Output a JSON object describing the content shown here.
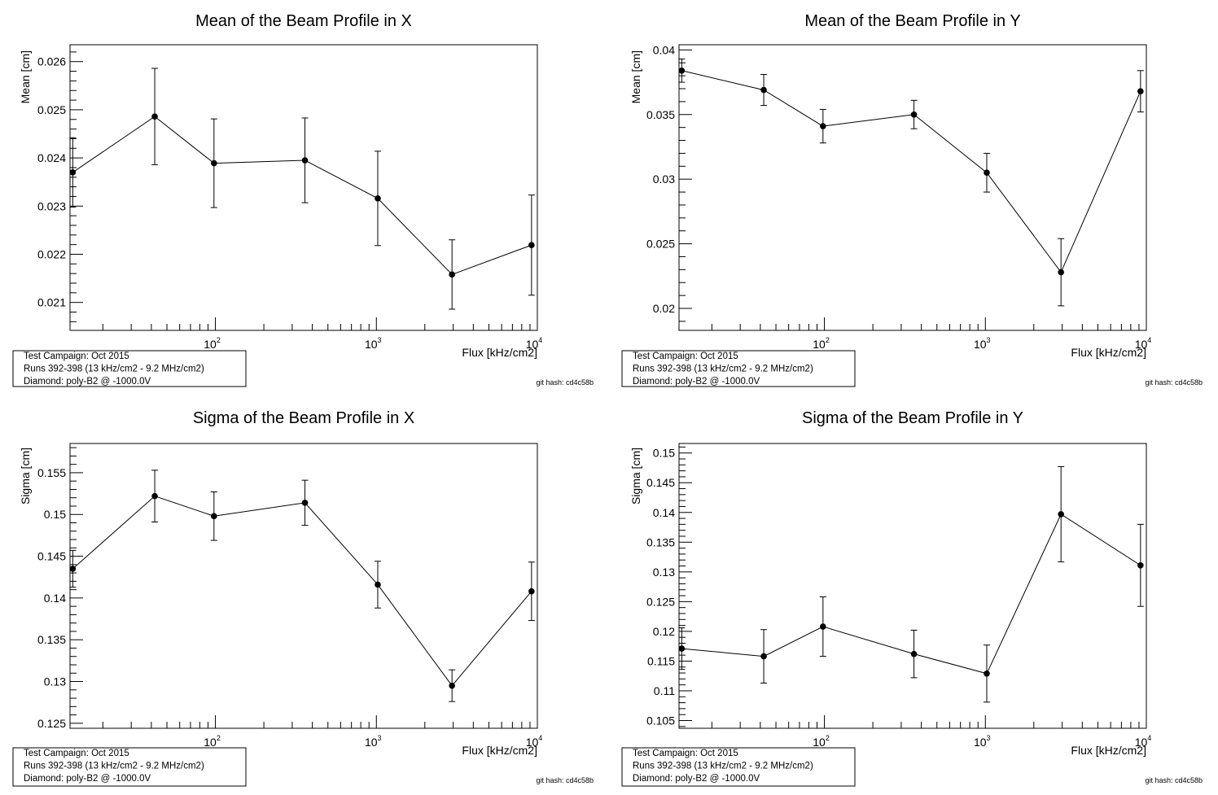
{
  "x_values": [
    13,
    42,
    98,
    360,
    1020,
    2950,
    9200
  ],
  "common": {
    "xlabel": "Flux [kHz/cm2]",
    "info_lines": [
      "Test Campaign: Oct 2015",
      "Runs 392-398 (13 kHz/cm2 - 9.2 MHz/cm2)",
      "Diamond: poly-B2 @ -1000.0V"
    ],
    "git_hash": "git hash: cd4c58b"
  },
  "chart_data": [
    {
      "type": "scatter",
      "title": "Mean of the Beam Profile in X",
      "xlabel": "Flux [kHz/cm2]",
      "ylabel": "Mean [cm]",
      "xscale": "log",
      "xlim": [
        12.5,
        10000
      ],
      "ylim": [
        0.02042,
        0.02635
      ],
      "yticks": [
        0.021,
        0.022,
        0.023,
        0.024,
        0.025,
        0.026
      ],
      "ytick_labels": [
        "0.021",
        "0.022",
        "0.023",
        "0.024",
        "0.025",
        "0.026"
      ],
      "xtick_labels": [
        {
          "base": "10",
          "exp": "2",
          "value": 100
        },
        {
          "base": "10",
          "exp": "3",
          "value": 1000
        },
        {
          "base": "10",
          "exp": "4",
          "value": 10000
        }
      ],
      "x": [
        13,
        42,
        98,
        360,
        1020,
        2950,
        9200
      ],
      "y": [
        0.0237,
        0.02486,
        0.02389,
        0.02395,
        0.02316,
        0.02158,
        0.02219
      ],
      "yerr": [
        0.00072,
        0.001,
        0.00092,
        0.00088,
        0.00098,
        0.00072,
        0.00104
      ],
      "grid": false,
      "legend": "none"
    },
    {
      "type": "scatter",
      "title": "Mean of the Beam Profile in Y",
      "xlabel": "Flux [kHz/cm2]",
      "ylabel": "Mean [cm]",
      "xscale": "log",
      "xlim": [
        12.5,
        10000
      ],
      "ylim": [
        0.0183,
        0.0404
      ],
      "yticks": [
        0.02,
        0.025,
        0.03,
        0.035,
        0.04
      ],
      "ytick_labels": [
        "0.02",
        "0.025",
        "0.03",
        "0.035",
        "0.04"
      ],
      "xtick_labels": [
        {
          "base": "10",
          "exp": "2",
          "value": 100
        },
        {
          "base": "10",
          "exp": "3",
          "value": 1000
        },
        {
          "base": "10",
          "exp": "4",
          "value": 10000
        }
      ],
      "x": [
        13,
        42,
        98,
        360,
        1020,
        2950,
        9200
      ],
      "y": [
        0.0384,
        0.0369,
        0.0341,
        0.035,
        0.0305,
        0.0228,
        0.0368
      ],
      "yerr": [
        0.0009,
        0.0012,
        0.0013,
        0.0011,
        0.0015,
        0.0026,
        0.0016
      ],
      "grid": false,
      "legend": "none"
    },
    {
      "type": "scatter",
      "title": "Sigma of the Beam Profile in X",
      "xlabel": "Flux [kHz/cm2]",
      "ylabel": "Sigma [cm]",
      "xscale": "log",
      "xlim": [
        12.5,
        10000
      ],
      "ylim": [
        0.1244,
        0.1585
      ],
      "yticks": [
        0.125,
        0.13,
        0.135,
        0.14,
        0.145,
        0.15,
        0.155
      ],
      "ytick_labels": [
        "0.125",
        "0.13",
        "0.135",
        "0.14",
        "0.145",
        "0.15",
        "0.155"
      ],
      "xtick_labels": [
        {
          "base": "10",
          "exp": "2",
          "value": 100
        },
        {
          "base": "10",
          "exp": "3",
          "value": 1000
        },
        {
          "base": "10",
          "exp": "4",
          "value": 10000
        }
      ],
      "x": [
        13,
        42,
        98,
        360,
        1020,
        2950,
        9200
      ],
      "y": [
        0.1435,
        0.1522,
        0.1498,
        0.1514,
        0.1416,
        0.1295,
        0.1408
      ],
      "yerr": [
        0.0022,
        0.0031,
        0.0029,
        0.0027,
        0.0028,
        0.0019,
        0.0035
      ],
      "grid": false,
      "legend": "none"
    },
    {
      "type": "scatter",
      "title": "Sigma of the Beam Profile in Y",
      "xlabel": "Flux [kHz/cm2]",
      "ylabel": "Sigma [cm]",
      "xscale": "log",
      "xlim": [
        12.5,
        10000
      ],
      "ylim": [
        0.1037,
        0.1516
      ],
      "yticks": [
        0.105,
        0.11,
        0.115,
        0.12,
        0.125,
        0.13,
        0.135,
        0.14,
        0.145,
        0.15
      ],
      "ytick_labels": [
        "0.105",
        "0.11",
        "0.115",
        "0.12",
        "0.125",
        "0.13",
        "0.135",
        "0.14",
        "0.145",
        "0.15"
      ],
      "xtick_labels": [
        {
          "base": "10",
          "exp": "2",
          "value": 100
        },
        {
          "base": "10",
          "exp": "3",
          "value": 1000
        },
        {
          "base": "10",
          "exp": "4",
          "value": 10000
        }
      ],
      "x": [
        13,
        42,
        98,
        360,
        1020,
        2950,
        9200
      ],
      "y": [
        0.1171,
        0.1158,
        0.1208,
        0.1162,
        0.1129,
        0.1397,
        0.1311
      ],
      "yerr": [
        0.0035,
        0.0045,
        0.005,
        0.004,
        0.0048,
        0.008,
        0.0069
      ],
      "grid": false,
      "legend": "none"
    }
  ]
}
